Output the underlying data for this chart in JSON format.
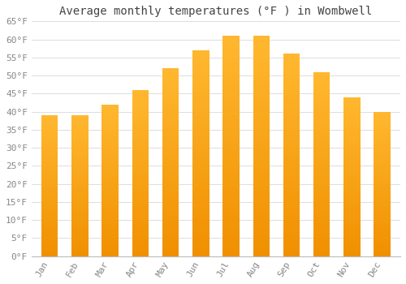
{
  "title": "Average monthly temperatures (°F ) in Wombwell",
  "months": [
    "Jan",
    "Feb",
    "Mar",
    "Apr",
    "May",
    "Jun",
    "Jul",
    "Aug",
    "Sep",
    "Oct",
    "Nov",
    "Dec"
  ],
  "values": [
    39,
    39,
    42,
    46,
    52,
    57,
    61,
    61,
    56,
    51,
    44,
    40
  ],
  "bar_color_light": "#FFB830",
  "bar_color_dark": "#F09000",
  "ylim": [
    0,
    65
  ],
  "yticks": [
    0,
    5,
    10,
    15,
    20,
    25,
    30,
    35,
    40,
    45,
    50,
    55,
    60,
    65
  ],
  "background_color": "#ffffff",
  "grid_color": "#dddddd",
  "title_fontsize": 10,
  "tick_fontsize": 8,
  "tick_color": "#888888",
  "title_color": "#444444",
  "font_family": "monospace",
  "bar_width": 0.55,
  "fig_width": 5.0,
  "fig_height": 3.5
}
